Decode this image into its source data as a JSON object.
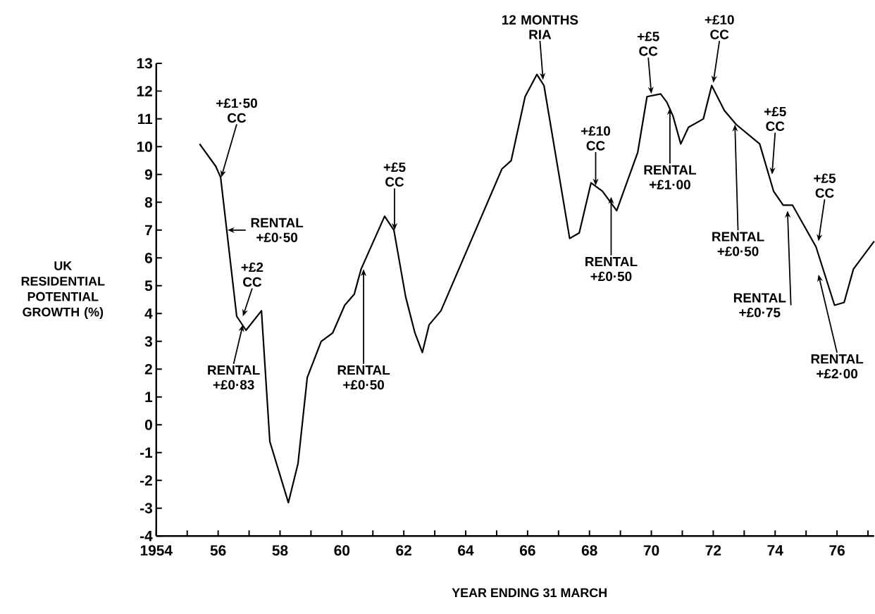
{
  "chart_data": {
    "type": "line",
    "xlabel": "YEAR ENDING 31 MARCH",
    "ylabel": "UK RESIDENTIAL POTENTIAL GROWTH (%)",
    "color": "#000000",
    "line_style": "solid",
    "marker": "none",
    "grid": false,
    "x": [
      1955.4,
      1955.92,
      1956.08,
      1956.6,
      1956.9,
      1957.4,
      1957.67,
      1958.27,
      1958.58,
      1958.88,
      1959.33,
      1959.7,
      1960.09,
      1960.4,
      1960.62,
      1961.38,
      1961.68,
      1962.06,
      1962.36,
      1962.6,
      1962.82,
      1963.2,
      1965.17,
      1965.47,
      1965.92,
      1966.3,
      1966.53,
      1967.36,
      1967.67,
      1968.05,
      1968.42,
      1968.88,
      1969.56,
      1969.86,
      1970.3,
      1970.5,
      1970.7,
      1970.95,
      1971.2,
      1971.68,
      1971.95,
      1972.36,
      1972.74,
      1973.5,
      1973.95,
      1974.26,
      1974.56,
      1975.32,
      1975.92,
      1976.23,
      1976.53,
      1977.2
    ],
    "values": [
      10.1,
      9.3,
      8.9,
      3.9,
      3.4,
      4.1,
      -0.6,
      -2.8,
      -1.4,
      1.7,
      3.0,
      3.3,
      4.3,
      4.7,
      5.6,
      7.5,
      7.0,
      4.6,
      3.3,
      2.6,
      3.6,
      4.1,
      9.2,
      9.5,
      11.8,
      12.6,
      12.2,
      6.7,
      6.9,
      8.7,
      8.4,
      7.7,
      9.8,
      11.8,
      11.9,
      11.6,
      11.1,
      10.1,
      10.7,
      11.0,
      12.2,
      11.3,
      10.8,
      10.1,
      8.4,
      7.9,
      7.9,
      6.4,
      4.3,
      4.4,
      5.6,
      6.6
    ],
    "xlim": [
      1954,
      1977.2
    ],
    "ylim": [
      -4,
      13
    ],
    "xticks": [
      1954,
      {
        "value": 1955,
        "label": null
      },
      {
        "value": 1956,
        "label": "56"
      },
      {
        "value": 1957,
        "label": null
      },
      {
        "value": 1958,
        "label": "58"
      },
      {
        "value": 1959,
        "label": null
      },
      {
        "value": 1960,
        "label": "60"
      },
      {
        "value": 1961,
        "label": null
      },
      {
        "value": 1962,
        "label": "62"
      },
      {
        "value": 1963,
        "label": null
      },
      {
        "value": 1964,
        "label": "64"
      },
      {
        "value": 1965,
        "label": null
      },
      {
        "value": 1966,
        "label": "66"
      },
      {
        "value": 1967,
        "label": null
      },
      {
        "value": 1968,
        "label": "68"
      },
      {
        "value": 1969,
        "label": null
      },
      {
        "value": 1970,
        "label": "70"
      },
      {
        "value": 1971,
        "label": null
      },
      {
        "value": 1972,
        "label": "72"
      },
      {
        "value": 1973,
        "label": null
      },
      {
        "value": 1974,
        "label": "74"
      },
      {
        "value": 1975,
        "label": null
      },
      {
        "value": 1976,
        "label": "76"
      },
      {
        "value": 1977,
        "label": null
      }
    ],
    "yticks": [
      -4,
      -3,
      -2,
      -1,
      0,
      1,
      2,
      3,
      4,
      5,
      6,
      7,
      8,
      9,
      10,
      11,
      12,
      13
    ],
    "annotations": [
      {
        "text": "+£1·50 CC",
        "x": 1956.1,
        "y": 8.9
      },
      {
        "text": "RENTAL +£0·50",
        "x": 1956.3,
        "y": 7.0
      },
      {
        "text": "+£2 CC",
        "x": 1956.8,
        "y": 3.9
      },
      {
        "text": "RENTAL +£0·83",
        "x": 1956.8,
        "y": 3.6
      },
      {
        "text": "+£5 CC",
        "x": 1961.7,
        "y": 7.0
      },
      {
        "text": "RENTAL +£0·50",
        "x": 1960.7,
        "y": 5.6
      },
      {
        "text": "12 MONTHS RIA",
        "x": 1966.5,
        "y": 12.4
      },
      {
        "text": "+£10 CC",
        "x": 1968.2,
        "y": 8.6
      },
      {
        "text": "RENTAL +£0·50",
        "x": 1968.7,
        "y": 8.2
      },
      {
        "text": "+£5 CC",
        "x": 1970.0,
        "y": 11.9
      },
      {
        "text": "RENTAL +£1·00",
        "x": 1970.6,
        "y": 11.4
      },
      {
        "text": "+£10 CC",
        "x": 1972.0,
        "y": 12.3
      },
      {
        "text": "RENTAL +£0·50",
        "x": 1972.7,
        "y": 10.8
      },
      {
        "text": "+£5 CC",
        "x": 1973.9,
        "y": 9.0
      },
      {
        "text": "RENTAL +£0·75",
        "x": 1974.4,
        "y": 7.7
      },
      {
        "text": "+£5 CC",
        "x": 1975.4,
        "y": 6.6
      },
      {
        "text": "RENTAL +£2·00",
        "x": 1975.4,
        "y": 5.4
      }
    ]
  }
}
